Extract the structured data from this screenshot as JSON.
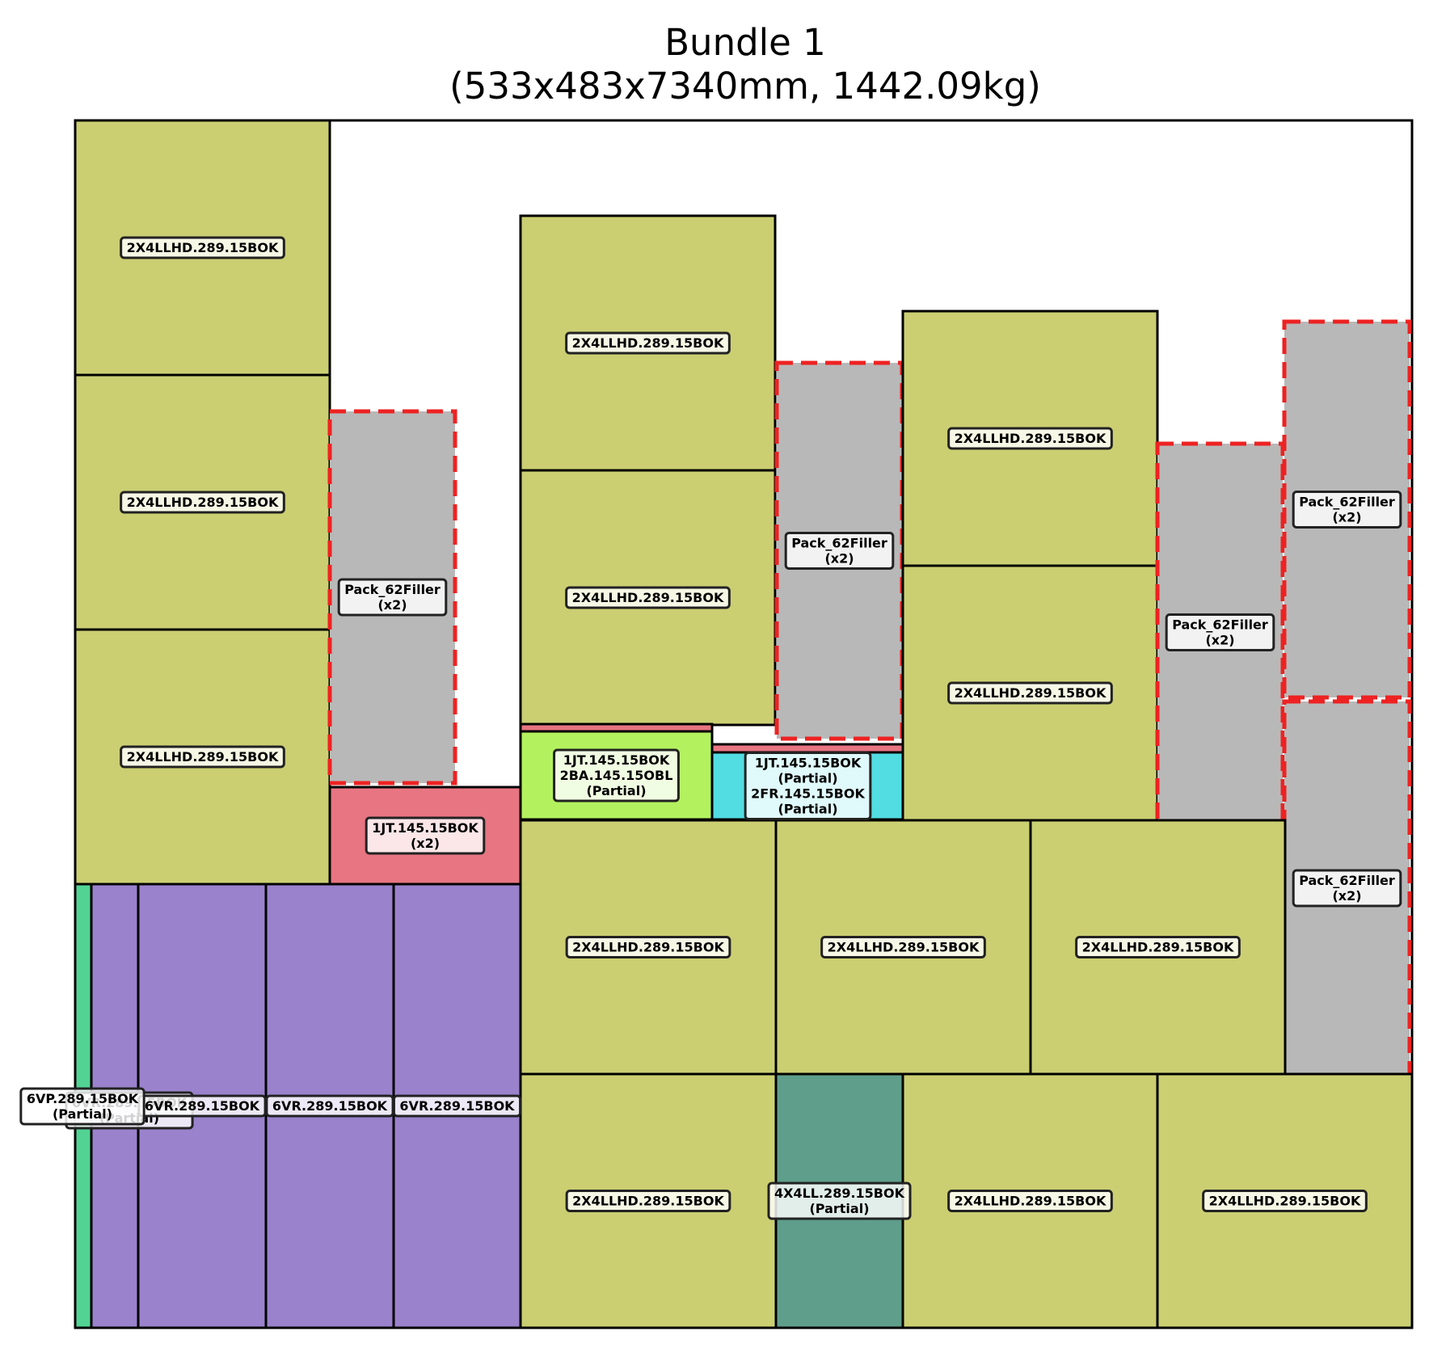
{
  "title": {
    "line1": "Bundle 1",
    "line2": "(533x483x7340mm, 1442.09kg)"
  },
  "colors": {
    "2X4LLHD.289.15BOK": "#cbcf72",
    "Pack_62Filler": "#b8b8b8",
    "filler_border": "#ee2222",
    "1JT.145.15BOK": "#e87582",
    "2BA.145.15OBL": "#b3f25e",
    "2FR.145.15BOK": "#52dde2",
    "6VR.289.15BOK": "#9a82cc",
    "6VP.289.15BOK": "#52d394",
    "4X4LL.289.15BOK": "#5e9e8a"
  },
  "pieces": [
    {
      "id": "a1",
      "kind": "2X4LLHD.289.15BOK",
      "label": [
        "2X4LLHD.289.15BOK"
      ]
    },
    {
      "id": "a2",
      "kind": "2X4LLHD.289.15BOK",
      "label": [
        "2X4LLHD.289.15BOK"
      ]
    },
    {
      "id": "a3",
      "kind": "2X4LLHD.289.15BOK",
      "label": [
        "2X4LLHD.289.15BOK"
      ]
    },
    {
      "id": "f1",
      "kind": "Pack_62Filler",
      "label": [
        "Pack_62Filler",
        "(x2)"
      ]
    },
    {
      "id": "j1",
      "kind": "1JT.145.15BOK",
      "label": [
        "1JT.145.15BOK",
        "(x2)"
      ]
    },
    {
      "id": "b1",
      "kind": "2X4LLHD.289.15BOK",
      "label": [
        "2X4LLHD.289.15BOK"
      ]
    },
    {
      "id": "b2",
      "kind": "2X4LLHD.289.15BOK",
      "label": [
        "2X4LLHD.289.15BOK"
      ]
    },
    {
      "id": "j2",
      "kind": "1JT.145.15BOK",
      "label": []
    },
    {
      "id": "ba1",
      "kind": "2BA.145.15OBL",
      "label": [
        "1JT.145.15BOK",
        "2BA.145.15OBL",
        "(Partial)"
      ]
    },
    {
      "id": "j3",
      "kind": "1JT.145.15BOK",
      "label": []
    },
    {
      "id": "fr1",
      "kind": "2FR.145.15BOK",
      "label": [
        "1JT.145.15BOK",
        "(Partial)",
        "2FR.145.15BOK",
        "(Partial)"
      ]
    },
    {
      "id": "f2",
      "kind": "Pack_62Filler",
      "label": [
        "Pack_62Filler",
        "(x2)"
      ]
    },
    {
      "id": "c1",
      "kind": "2X4LLHD.289.15BOK",
      "label": [
        "2X4LLHD.289.15BOK"
      ]
    },
    {
      "id": "c2",
      "kind": "2X4LLHD.289.15BOK",
      "label": [
        "2X4LLHD.289.15BOK"
      ]
    },
    {
      "id": "f3",
      "kind": "Pack_62Filler",
      "label": [
        "Pack_62Filler",
        "(x2)"
      ]
    },
    {
      "id": "f4",
      "kind": "Pack_62Filler",
      "label": [
        "Pack_62Filler",
        "(x2)"
      ]
    },
    {
      "id": "f5",
      "kind": "Pack_62Filler",
      "label": [
        "Pack_62Filler",
        "(x2)"
      ]
    },
    {
      "id": "d1",
      "kind": "2X4LLHD.289.15BOK",
      "label": [
        "2X4LLHD.289.15BOK"
      ]
    },
    {
      "id": "d2",
      "kind": "2X4LLHD.289.15BOK",
      "label": [
        "2X4LLHD.289.15BOK"
      ]
    },
    {
      "id": "d3",
      "kind": "2X4LLHD.289.15BOK",
      "label": [
        "2X4LLHD.289.15BOK"
      ]
    },
    {
      "id": "e1",
      "kind": "2X4LLHD.289.15BOK",
      "label": [
        "2X4LLHD.289.15BOK"
      ]
    },
    {
      "id": "e2",
      "kind": "4X4LL.289.15BOK",
      "label": [
        "4X4LL.289.15BOK",
        "(Partial)"
      ]
    },
    {
      "id": "e3",
      "kind": "2X4LLHD.289.15BOK",
      "label": [
        "2X4LLHD.289.15BOK"
      ]
    },
    {
      "id": "e4",
      "kind": "2X4LLHD.289.15BOK",
      "label": [
        "2X4LLHD.289.15BOK"
      ]
    },
    {
      "id": "vp1",
      "kind": "6VP.289.15BOK",
      "label": []
    },
    {
      "id": "vr1",
      "kind": "6VR.289.15BOK",
      "label": [
        "6VR.289.15BOK",
        "(Partial)"
      ]
    },
    {
      "id": "vr2",
      "kind": "6VR.289.15BOK",
      "label": [
        "6VR.289.15BOK"
      ]
    },
    {
      "id": "vr3",
      "kind": "6VR.289.15BOK",
      "label": [
        "6VR.289.15BOK"
      ]
    },
    {
      "id": "vr4",
      "kind": "6VR.289.15BOK",
      "label": [
        "6VR.289.15BOK"
      ]
    },
    {
      "id": "vp_label",
      "kind": "6VP.289.15BOK",
      "label": [
        "6VP.289.15BOK",
        "(Partial)"
      ]
    }
  ]
}
